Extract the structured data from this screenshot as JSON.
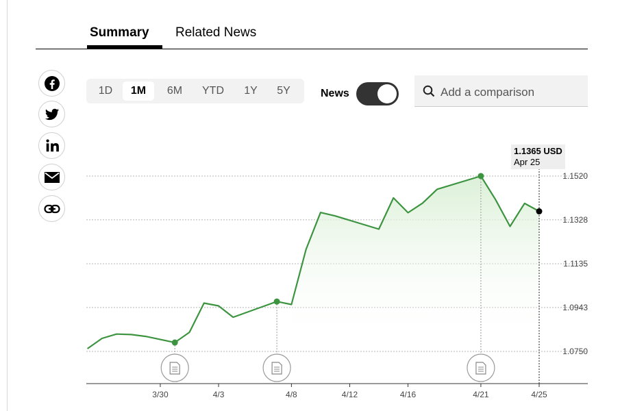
{
  "tabs": {
    "summary": "Summary",
    "related": "Related News"
  },
  "share": [
    {
      "name": "facebook-icon"
    },
    {
      "name": "twitter-icon"
    },
    {
      "name": "linkedin-icon"
    },
    {
      "name": "email-icon"
    },
    {
      "name": "link-icon"
    }
  ],
  "ranges": [
    "1D",
    "1M",
    "6M",
    "YTD",
    "1Y",
    "5Y"
  ],
  "active_range": "1M",
  "news_toggle": {
    "label": "News",
    "on": true
  },
  "search": {
    "placeholder": "Add a comparison"
  },
  "tooltip": {
    "value": "1.1365 USD",
    "date": "Apr 25"
  },
  "colors": {
    "line": "#3d9440",
    "fill": "#e9f5e6",
    "accent": "#000000"
  },
  "chart_data": {
    "type": "line",
    "x": [
      "3/25",
      "3/26",
      "3/27",
      "3/28",
      "3/29",
      "3/31",
      "4/1",
      "4/2",
      "4/3",
      "4/4",
      "4/7",
      "4/8",
      "4/9",
      "4/10",
      "4/11",
      "4/14",
      "4/15",
      "4/16",
      "4/17",
      "4/18",
      "4/21",
      "4/22",
      "4/23",
      "4/24",
      "4/25"
    ],
    "values": [
      1.0762,
      1.0807,
      1.0826,
      1.0824,
      1.0816,
      1.0789,
      1.0834,
      1.0962,
      1.095,
      1.09,
      1.0969,
      1.0956,
      1.1198,
      1.136,
      1.1345,
      1.1287,
      1.1424,
      1.1359,
      1.1401,
      1.1462,
      1.152,
      1.1417,
      1.1299,
      1.14,
      1.1365
    ],
    "xticks": [
      "3/30",
      "4/3",
      "4/8",
      "4/12",
      "4/16",
      "4/21",
      "4/25"
    ],
    "yticks": [
      "1.1520",
      "1.1328",
      "1.1135",
      "1.0943",
      "1.0750"
    ],
    "ylim": [
      1.075,
      1.152
    ],
    "grid": true,
    "news_markers": [
      "3/31",
      "4/7",
      "4/21"
    ],
    "hover": "4/25"
  }
}
